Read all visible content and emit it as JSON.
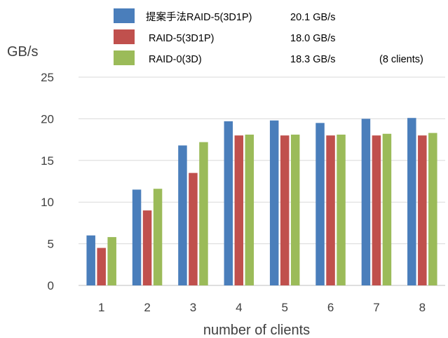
{
  "chart_data": {
    "type": "bar",
    "title": "",
    "xlabel": "number of clients",
    "ylabel": "GB/s",
    "ylim": [
      0,
      25
    ],
    "yticks": [
      0,
      5,
      10,
      15,
      20,
      25
    ],
    "grid": true,
    "legend_position": "top",
    "categories": [
      "1",
      "2",
      "3",
      "4",
      "5",
      "6",
      "7",
      "8"
    ],
    "series": [
      {
        "name": "提案手法RAID-5(3D1P)",
        "values": [
          6.0,
          11.5,
          16.8,
          19.7,
          19.8,
          19.5,
          20.0,
          20.1
        ],
        "color": "#4a7ebb",
        "note": "20.1 GB/s"
      },
      {
        "name": "RAID-5(3D1P)",
        "values": [
          4.5,
          9.0,
          13.5,
          18.0,
          18.0,
          18.0,
          18.0,
          18.0
        ],
        "color": "#c0504d",
        "note": "18.0 GB/s"
      },
      {
        "name": "RAID-0(3D)",
        "values": [
          5.8,
          11.6,
          17.2,
          18.1,
          18.1,
          18.1,
          18.2,
          18.3
        ],
        "color": "#9bbb59",
        "note": "18.3 GB/s"
      }
    ],
    "legend_footnote": "(8 clients)"
  }
}
